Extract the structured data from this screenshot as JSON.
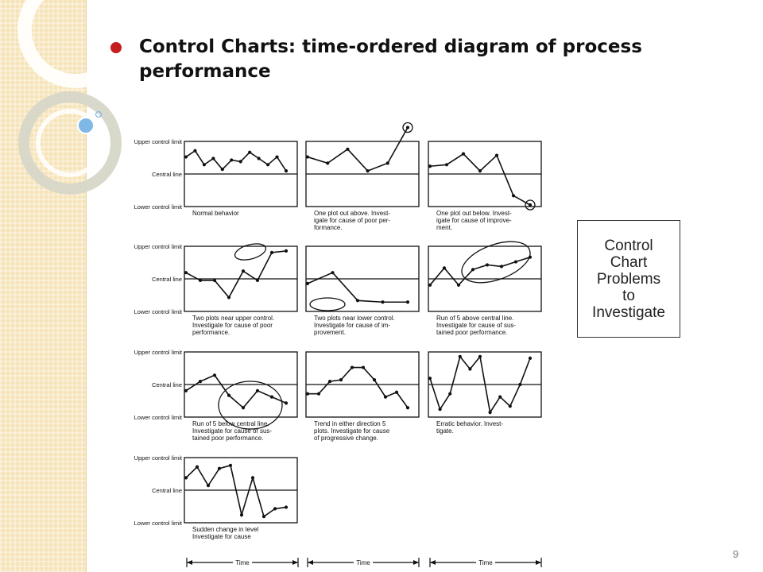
{
  "slide": {
    "title": "Control Charts: time-ordered diagram of process performance",
    "page_number": "9",
    "callout": "Control\nChart\nProblems\nto\nInvestigate"
  },
  "axis_labels": {
    "upper": "Upper control limit",
    "central": "Central line",
    "lower": "Lower control limit",
    "time": "Time"
  },
  "panels": [
    {
      "caption": [
        "Normal behavior"
      ],
      "trend": [
        0.55,
        0.75,
        0.3,
        0.5,
        0.15,
        0.45,
        0.4,
        0.7,
        0.5,
        0.3,
        0.55,
        0.1
      ]
    },
    {
      "caption": [
        "One plot out above. Invest-",
        "igate for cause of poor per-",
        "formance."
      ],
      "trend": [
        0.55,
        0.35,
        0.8,
        0.1,
        0.35,
        1.5
      ],
      "mark_last": true
    },
    {
      "caption": [
        "One plot out below. Invest-",
        "igate for cause of improve-",
        "ment."
      ],
      "trend": [
        0.25,
        0.3,
        0.65,
        0.1,
        0.6,
        -0.7,
        -1.0
      ],
      "mark_last": true
    },
    {
      "caption": [
        "Two plots near upper control.",
        "Investigate for cause of poor",
        "performance."
      ],
      "trend": [
        0.2,
        -0.05,
        -0.05,
        -0.6,
        0.25,
        -0.05,
        0.85,
        0.9
      ]
    },
    {
      "caption": [
        "Two plots near lower control.",
        "Investigate for cause of im-",
        "provement."
      ],
      "trend": [
        -0.15,
        0.2,
        -0.7,
        -0.75,
        -0.75
      ]
    },
    {
      "caption": [
        "Run of 5 above central line.",
        "Investigate for cause of sus-",
        "tained poor performance."
      ],
      "trend": [
        -0.2,
        0.35,
        -0.2,
        0.3,
        0.45,
        0.4,
        0.55,
        0.7
      ]
    },
    {
      "caption": [
        "Run of 5 below central line.",
        "Investigate for cause of sus-",
        "tained poor performance."
      ],
      "trend": [
        -0.2,
        0.1,
        0.3,
        -0.35,
        -0.75,
        -0.2,
        -0.4,
        -0.6
      ]
    },
    {
      "caption": [
        "Trend in either direction 5",
        "plots. Investigate for cause",
        "of progressive change."
      ],
      "trend": [
        -0.3,
        -0.3,
        0.1,
        0.15,
        0.55,
        0.55,
        0.15,
        -0.4,
        -0.25,
        -0.75
      ]
    },
    {
      "caption": [
        "Erratic behavior. Invest-",
        "tigate."
      ],
      "trend": [
        0.2,
        -0.8,
        -0.3,
        0.9,
        0.5,
        0.9,
        -0.9,
        -0.4,
        -0.7,
        0.0,
        0.85
      ]
    },
    {
      "caption": [
        "Sudden change in level",
        "Investigate for cause"
      ],
      "trend": [
        0.4,
        0.75,
        0.15,
        0.7,
        0.8,
        -0.8,
        0.4,
        -0.85,
        -0.6,
        -0.55
      ]
    }
  ]
}
